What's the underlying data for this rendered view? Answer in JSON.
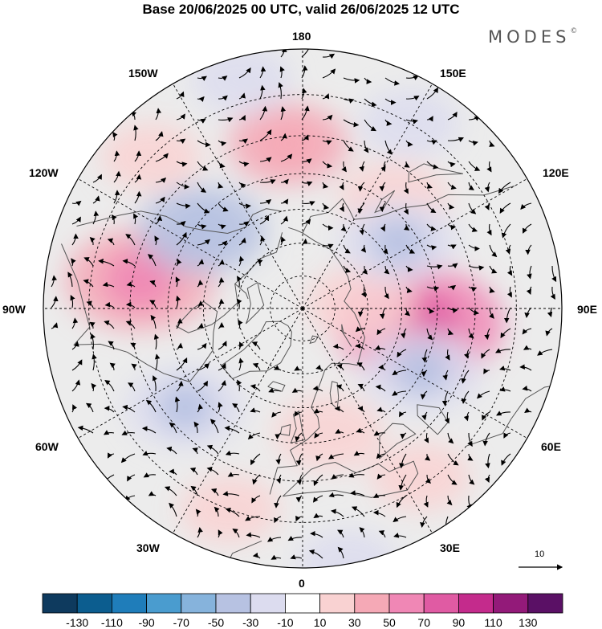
{
  "title": "Base 20/06/2025 00 UTC, valid 26/06/2025 12 UTC",
  "brand": {
    "text": "MODES",
    "mark": "©"
  },
  "map": {
    "projection": "north-polar-stereographic",
    "center_latitude": 90,
    "lat_circles_deg": [
      20,
      30,
      40,
      50,
      60,
      70,
      80
    ],
    "meridian_step_deg": 30,
    "longitude_labels": {
      "180": "180",
      "150E": "150E",
      "120E": "120E",
      "90E": "90E",
      "60E": "60E",
      "30E": "30E",
      "0": "0",
      "30W": "30W",
      "60W": "60W",
      "90W": "90W",
      "120W": "120W",
      "150W": "150W"
    },
    "grid_line_style": "dashed",
    "land_outline_color": "#555555",
    "field": "anomaly",
    "positive_anomalies": [
      {
        "lon": 82,
        "lat": 55,
        "strength": 90
      },
      {
        "lon": -100,
        "lat": 42,
        "strength": 70
      },
      {
        "lon": -175,
        "lat": 42,
        "strength": 40
      },
      {
        "lon": 12,
        "lat": 52,
        "strength": 30
      },
      {
        "lon": 140,
        "lat": 48,
        "strength": 30
      },
      {
        "lon": 95,
        "lat": 72,
        "strength": 30
      },
      {
        "lon": 35,
        "lat": 32,
        "strength": 20
      },
      {
        "lon": -20,
        "lat": 30,
        "strength": 20
      },
      {
        "lon": -135,
        "lat": 30,
        "strength": 20
      }
    ],
    "negative_anomalies": [
      {
        "lon": -128,
        "lat": 52,
        "strength": -50
      },
      {
        "lon": 125,
        "lat": 55,
        "strength": -40
      },
      {
        "lon": 62,
        "lat": 50,
        "strength": -40
      },
      {
        "lon": -50,
        "lat": 45,
        "strength": -40
      },
      {
        "lon": -165,
        "lat": 25,
        "strength": -20
      },
      {
        "lon": 150,
        "lat": 30,
        "strength": -20
      },
      {
        "lon": 10,
        "lat": 20,
        "strength": -20
      }
    ]
  },
  "vector_reference": {
    "value": "10",
    "arrow_color": "#000000"
  },
  "colorbar": {
    "ticks": [
      "-130",
      "-110",
      "-90",
      "-70",
      "-50",
      "-30",
      "-10",
      "10",
      "30",
      "50",
      "70",
      "90",
      "110",
      "130"
    ],
    "colors": [
      "#0e3a5e",
      "#0c5d8f",
      "#1f7dba",
      "#4a9ccf",
      "#86b3dc",
      "#b7c2e2",
      "#dcdcef",
      "#ffffff",
      "#f9d2d2",
      "#f5a9b6",
      "#f087b5",
      "#e05ba3",
      "#c42b8c",
      "#931a79",
      "#5a1065"
    ]
  }
}
